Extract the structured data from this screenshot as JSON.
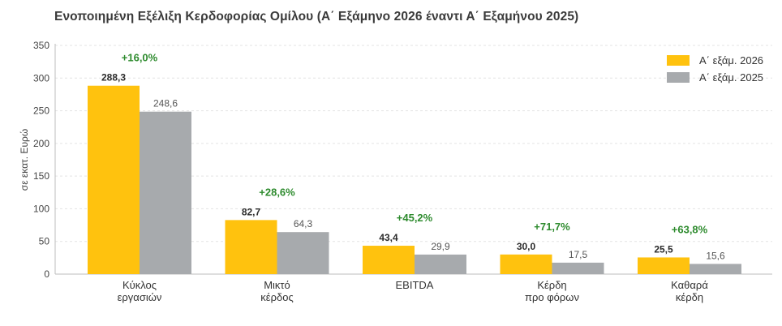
{
  "title": "Ενοποιημένη Εξέλιξη Κερδοφορίας Ομίλου (Α΄ Εξάμηνο 2026 έναντι Α΄ Εξαμήνου 2025)",
  "chart_data": {
    "type": "bar",
    "title": "Ενοποιημένη Εξέλιξη Κερδοφορίας Ομίλου (Α΄ Εξάμηνο 2026 έναντι Α΄ Εξαμήνου 2025)",
    "ylabel": "σε εκατ. Ευρώ",
    "xlabel": "",
    "ylim": [
      0,
      350
    ],
    "yticks": [
      0,
      50,
      100,
      150,
      200,
      250,
      300,
      350
    ],
    "grid": true,
    "legend_position": "top-right",
    "categories": [
      [
        "Κύκλος",
        "εργασιών"
      ],
      [
        "Μικτό",
        "κέρδος"
      ],
      [
        "EBITDA"
      ],
      [
        "Κέρδη",
        "προ φόρων"
      ],
      [
        "Καθαρά",
        "κέρδη"
      ]
    ],
    "series": [
      {
        "name": "Α΄ εξάμ. 2026",
        "color": "#FFC20E",
        "values": [
          288.3,
          82.7,
          43.4,
          30.0,
          25.5
        ],
        "labels": [
          "288,3",
          "82,7",
          "43,4",
          "30,0",
          "25,5"
        ]
      },
      {
        "name": "Α΄ εξάμ. 2025",
        "color": "#A7AAAD",
        "values": [
          248.6,
          64.3,
          29.9,
          17.5,
          15.6
        ],
        "labels": [
          "248,6",
          "64,3",
          "29,9",
          "17,5",
          "15,6"
        ]
      }
    ],
    "changes": [
      "+16,0%",
      "+28,6%",
      "+45,2%",
      "+71,7%",
      "+63,8%"
    ],
    "change_color": "#2E8B2E"
  }
}
